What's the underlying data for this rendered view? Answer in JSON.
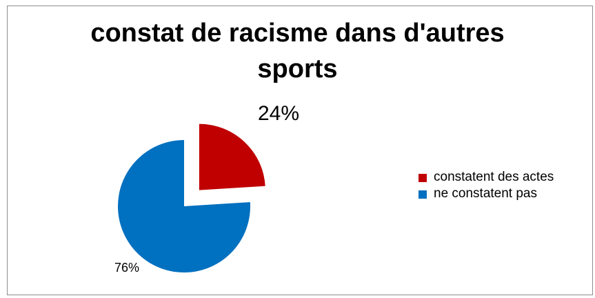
{
  "chart_data": {
    "type": "pie",
    "title": "constat de racisme dans d'autres sports",
    "title_lines": [
      "constat de racisme dans d'autres",
      "sports"
    ],
    "slices": [
      {
        "name": "constatent des actes",
        "value": 24,
        "label": "24%",
        "color": "#c00000",
        "exploded": true
      },
      {
        "name": "ne constatent pas",
        "value": 76,
        "label": "76%",
        "color": "#0070c0",
        "exploded": false
      }
    ],
    "legend": {
      "placement": "right",
      "entries": [
        {
          "label": "constatent des actes",
          "color": "#c00000"
        },
        {
          "label": "ne constatent pas",
          "color": "#0070c0"
        }
      ]
    }
  }
}
